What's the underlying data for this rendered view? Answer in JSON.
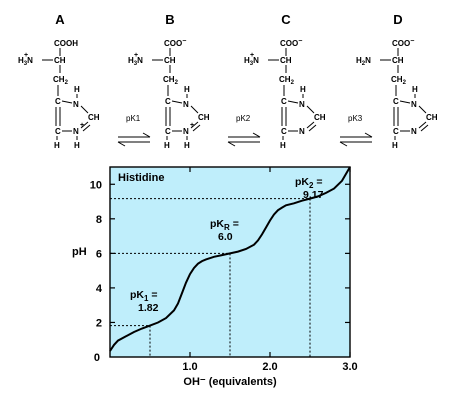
{
  "structures": [
    {
      "letter": "A",
      "carboxyl": "COOH",
      "amino": "H",
      "amino_sub": "3",
      "amino_charge": "+",
      "ring_charge": "+"
    },
    {
      "letter": "B",
      "carboxyl": "COO",
      "carboxyl_charge": "−",
      "amino": "H",
      "amino_sub": "3",
      "amino_charge": "+",
      "ring_charge": "+"
    },
    {
      "letter": "C",
      "carboxyl": "COO",
      "carboxyl_charge": "−",
      "amino": "H",
      "amino_sub": "3",
      "amino_charge": "+",
      "ring_charge": ""
    },
    {
      "letter": "D",
      "carboxyl": "COO",
      "carboxyl_charge": "−",
      "amino": "H",
      "amino_sub": "2",
      "amino_charge": "",
      "ring_charge": ""
    }
  ],
  "mol_text": {
    "n": "N",
    "ch": "CH",
    "c": "C",
    "h": "H",
    "ch2": "CH",
    "ch2_sub": "2",
    "ch_alpha": "CH",
    "alpha_n": "N"
  },
  "equilibria": [
    {
      "label": "pK1"
    },
    {
      "label": "pK2"
    },
    {
      "label": "pK3"
    }
  ],
  "chart_data": {
    "type": "line",
    "title": "Histidine",
    "xlabel": "OH⁻ (equivalents)",
    "ylabel": "pH",
    "xlim": [
      0,
      3.0
    ],
    "ylim": [
      0,
      11
    ],
    "x_ticks": [
      "1.0",
      "2.0",
      "3.0"
    ],
    "y_ticks": [
      "0",
      "2",
      "4",
      "6",
      "8",
      "10"
    ],
    "grid": false,
    "background": "#bfeefb",
    "annotations": [
      {
        "label_main": "pK",
        "label_sub": "1",
        "label_tail": " =",
        "value": "1.82",
        "x": 0.5,
        "y": 1.82
      },
      {
        "label_main": "pK",
        "label_sub": "R",
        "label_tail": " =",
        "value": "6.0",
        "x": 1.5,
        "y": 6.0
      },
      {
        "label_main": "pK",
        "label_sub": "2",
        "label_tail": " =",
        "value": "9.17",
        "x": 2.5,
        "y": 9.17
      }
    ],
    "series": [
      {
        "x": [
          0.0,
          0.05,
          0.1,
          0.2,
          0.3,
          0.4,
          0.5,
          0.6,
          0.7,
          0.8,
          0.85,
          0.9,
          0.95,
          1.0,
          1.05,
          1.1,
          1.15,
          1.2,
          1.3,
          1.4,
          1.5,
          1.6,
          1.7,
          1.8,
          1.85,
          1.9,
          1.95,
          2.0,
          2.05,
          2.1,
          2.15,
          2.2,
          2.3,
          2.4,
          2.5,
          2.6,
          2.7,
          2.8,
          2.9,
          2.95,
          3.0
        ],
        "y": [
          0.35,
          0.7,
          0.95,
          1.2,
          1.45,
          1.65,
          1.82,
          2.0,
          2.25,
          2.7,
          3.1,
          3.7,
          4.3,
          4.8,
          5.15,
          5.4,
          5.55,
          5.65,
          5.8,
          5.9,
          6.0,
          6.1,
          6.25,
          6.5,
          6.75,
          7.1,
          7.5,
          7.9,
          8.25,
          8.5,
          8.65,
          8.78,
          8.9,
          9.05,
          9.17,
          9.3,
          9.5,
          9.75,
          10.2,
          10.6,
          11.0
        ]
      }
    ]
  }
}
